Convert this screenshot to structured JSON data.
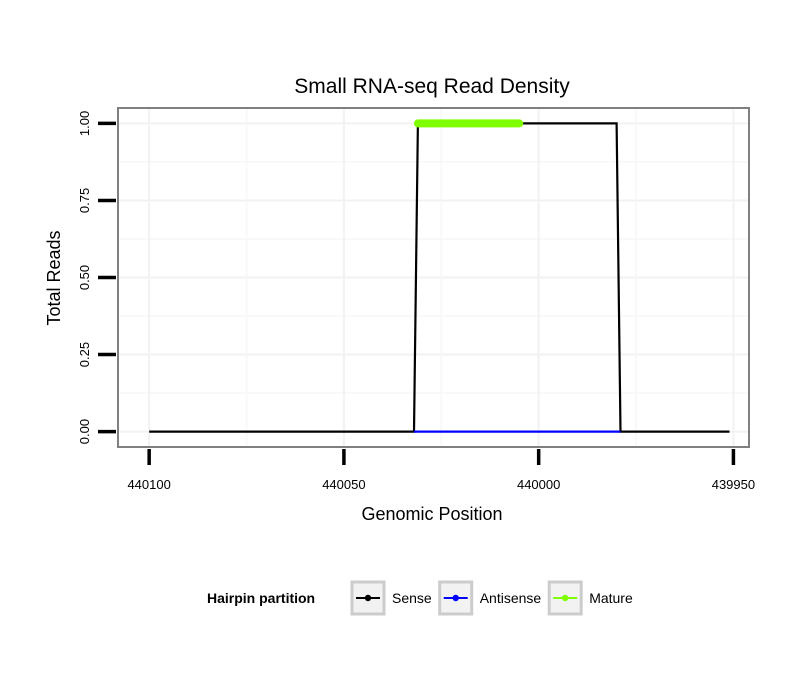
{
  "chart_data": {
    "type": "line",
    "title": "Small RNA-seq Read Density",
    "xlabel": "Genomic Position",
    "ylabel": "Total Reads",
    "xlim": [
      440108,
      439946
    ],
    "ylim": [
      -0.05,
      1.05
    ],
    "x_reversed": true,
    "x_ticks": [
      440100,
      440050,
      440000,
      439950
    ],
    "x_tick_labels": [
      "440100",
      "440050",
      "440000",
      "439950"
    ],
    "y_ticks": [
      0,
      0.25,
      0.5,
      0.75,
      1.0
    ],
    "y_tick_labels": [
      "0.00",
      "0.25",
      "0.50",
      "0.75",
      "1.00"
    ],
    "grid": true,
    "legend": {
      "title": "Hairpin partition",
      "position": "bottom",
      "entries": [
        "Sense",
        "Antisense",
        "Mature"
      ]
    },
    "series": [
      {
        "name": "Sense",
        "color": "#000000",
        "x": [
          440100,
          440032,
          440031,
          439980,
          439979,
          439951
        ],
        "y": [
          0,
          0,
          1,
          1,
          0,
          0
        ]
      },
      {
        "name": "Antisense",
        "color": "#0000ff",
        "x": [
          440032,
          439979
        ],
        "y": [
          0,
          0
        ]
      },
      {
        "name": "Mature",
        "color": "#7fff00",
        "x": [
          440031,
          440005
        ],
        "y": [
          1,
          1
        ]
      }
    ]
  }
}
